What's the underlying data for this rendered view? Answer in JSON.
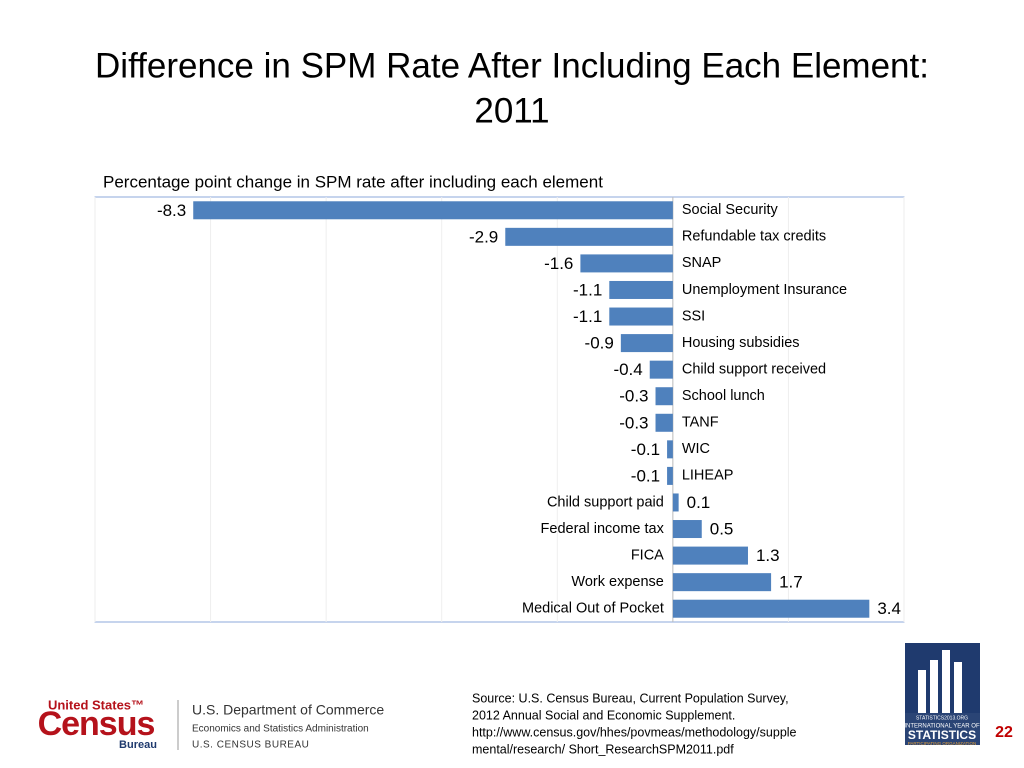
{
  "chart_data": {
    "type": "bar",
    "orientation": "horizontal",
    "title": [
      "Difference in SPM Rate After Including Each Element:",
      "2011"
    ],
    "subtitle": "Percentage point change in SPM rate after including each element",
    "categories": [
      "Social Security",
      "Refundable tax credits",
      "SNAP",
      "Unemployment Insurance",
      "SSI",
      "Housing subsidies",
      "Child support received",
      "School lunch",
      "TANF",
      "WIC",
      "LIHEAP",
      "Child support paid",
      "Federal income tax",
      "FICA",
      "Work expense",
      "Medical Out of Pocket"
    ],
    "values": [
      -8.3,
      -2.9,
      -1.6,
      -1.1,
      -1.1,
      -0.9,
      -0.4,
      -0.3,
      -0.3,
      -0.1,
      -0.1,
      0.1,
      0.5,
      1.3,
      1.7,
      3.4
    ],
    "color": "#4f81bd",
    "xlim": [
      -10,
      4
    ],
    "xticks": [
      -10,
      -8,
      -6,
      -4,
      -2,
      0,
      2,
      4
    ],
    "grid": true
  },
  "footer": {
    "source": [
      "Source: U.S. Census Bureau, Current Population Survey,",
      "2012 Annual Social and Economic Supplement.",
      "http://www.census.gov/hhes/povmeas/methodology/supple",
      "mental/research/ Short_ResearchSPM2011.pdf"
    ],
    "page_number": "22",
    "census_logo": {
      "top": "United States™",
      "main": "Census",
      "bottom": "Bureau"
    },
    "department": [
      "U.S. Department of Commerce",
      "Economics and Statistics Administration",
      "U.S. CENSUS BUREAU"
    ],
    "stats_logo": [
      "STATISTICS2013.ORG",
      "INTERNATIONAL YEAR OF",
      "STATISTICS",
      "PARTICIPATING ORGANIZATION"
    ]
  }
}
